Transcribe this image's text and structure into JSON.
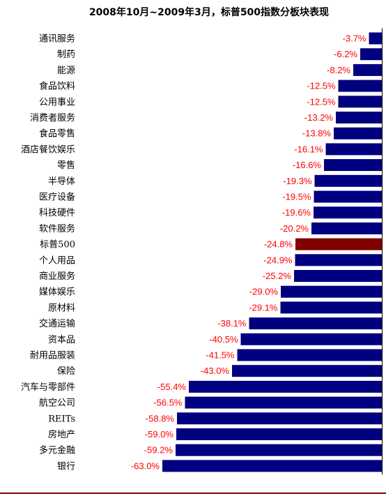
{
  "chart_data": {
    "type": "bar",
    "orientation": "horizontal",
    "title": "2008年10月~2009年3月，标普500指数分板块表现",
    "categories": [
      "通讯服务",
      "制药",
      "能源",
      "食品饮料",
      "公用事业",
      "消费者服务",
      "食品零售",
      "酒店餐饮娱乐",
      "零售",
      "半导体",
      "医疗设备",
      "科技硬件",
      "软件服务",
      "标普500",
      "个人用品",
      "商业服务",
      "媒体娱乐",
      "原材料",
      "交通运输",
      "资本品",
      "耐用品服装",
      "保险",
      "汽车与零部件",
      "航空公司",
      "REITs",
      "房地产",
      "多元金融",
      "银行"
    ],
    "values": [
      -3.7,
      -6.2,
      -8.2,
      -12.5,
      -12.5,
      -13.2,
      -13.8,
      -16.1,
      -16.6,
      -19.3,
      -19.5,
      -19.6,
      -20.2,
      -24.8,
      -24.9,
      -25.2,
      -29.0,
      -29.1,
      -38.1,
      -40.5,
      -41.5,
      -43.0,
      -55.4,
      -56.5,
      -58.8,
      -59.0,
      -59.2,
      -63.0
    ],
    "value_labels": [
      "-3.7%",
      "-6.2%",
      "-8.2%",
      "-12.5%",
      "-12.5%",
      "-13.2%",
      "-13.8%",
      "-16.1%",
      "-16.6%",
      "-19.3%",
      "-19.5%",
      "-19.6%",
      "-20.2%",
      "-24.8%",
      "-24.9%",
      "-25.2%",
      "-29.0%",
      "-29.1%",
      "-38.1%",
      "-40.5%",
      "-41.5%",
      "-43.0%",
      "-55.4%",
      "-56.5%",
      "-58.8%",
      "-59.0%",
      "-59.2%",
      "-63.0%"
    ],
    "highlight_index": 13,
    "xlim": [
      -70,
      0
    ],
    "grid": false,
    "legend": "none",
    "colors": {
      "bar": "#000080",
      "highlight": "#800000",
      "label": "#ff0000",
      "axis": "#000000",
      "footer_line": "#800000"
    }
  }
}
